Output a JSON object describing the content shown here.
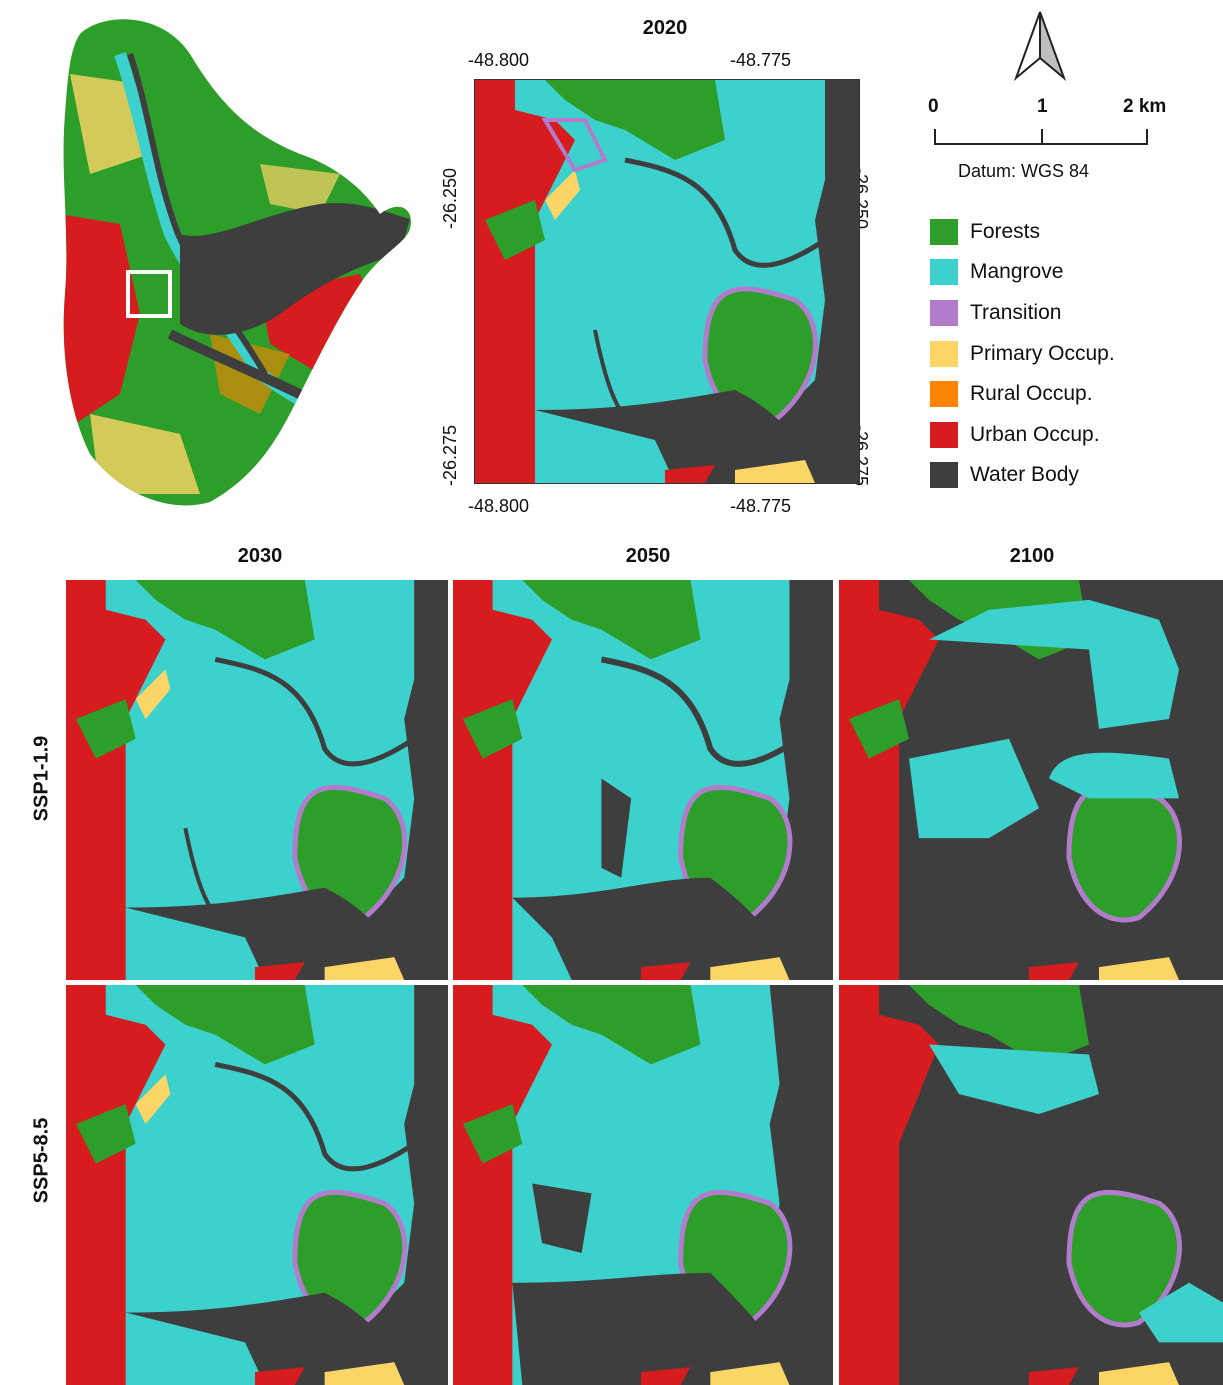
{
  "top_text": "",
  "colors": {
    "forests": "#2e9e2a",
    "mangrove": "#3cd1cc",
    "transition": "#b27ccc",
    "primary": "#fcd567",
    "rural": "#fd8400",
    "urban": "#d61c1e",
    "water": "#3e3e3e"
  },
  "inset": {
    "title": "2020",
    "x_ticks": [
      "-48.800",
      "-48.775"
    ],
    "y_ticks": [
      "-26.250",
      "-26.275"
    ]
  },
  "scale": {
    "labels": [
      "0",
      "1",
      "2 km"
    ],
    "datum": "Datum: WGS 84"
  },
  "legend": [
    {
      "label": "Forests",
      "color": "#2e9e2a"
    },
    {
      "label": "Mangrove",
      "color": "#3cd1cc"
    },
    {
      "label": "Transition",
      "color": "#b27ccc"
    },
    {
      "label": "Primary Occup.",
      "color": "#fcd567"
    },
    {
      "label": "Rural Occup.",
      "color": "#fd8400"
    },
    {
      "label": "Urban Occup.",
      "color": "#d61c1e"
    },
    {
      "label": "Water Body",
      "color": "#3e3e3e"
    }
  ],
  "columns": [
    "2030",
    "2050",
    "2100"
  ],
  "rows": [
    "SSP1-1.9",
    "SSP5-8.5"
  ]
}
